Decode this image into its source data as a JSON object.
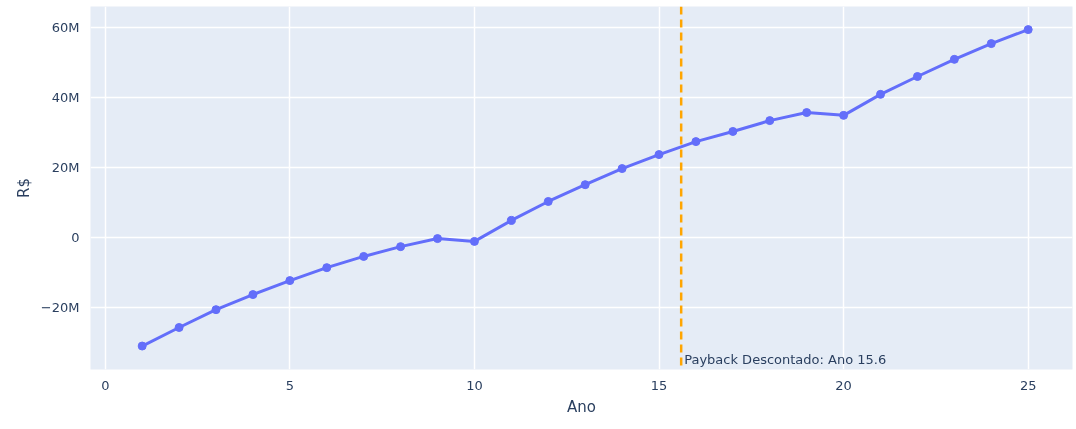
{
  "chart_data": {
    "type": "line",
    "xlabel": "Ano",
    "ylabel": "R$",
    "x": [
      1,
      2,
      3,
      4,
      5,
      6,
      7,
      8,
      9,
      10,
      11,
      12,
      13,
      14,
      15,
      16,
      17,
      18,
      19,
      20,
      21,
      22,
      23,
      24,
      25
    ],
    "series": [
      {
        "color": "#636efa",
        "values": [
          -31000000,
          -25700000,
          -20600000,
          -16300000,
          -12300000,
          -8600000,
          -5400000,
          -2600000,
          -300000,
          -1100000,
          4900000,
          10300000,
          15100000,
          19700000,
          23700000,
          27400000,
          30300000,
          33400000,
          35700000,
          34900000,
          40900000,
          46000000,
          50900000,
          55400000,
          59400000
        ]
      }
    ],
    "xlim": [
      -0.4,
      26.2
    ],
    "ylim": [
      -37700000,
      66000000
    ],
    "xticks": [
      0,
      5,
      10,
      15,
      20,
      25
    ],
    "yticks": [
      {
        "value": -20000000,
        "label": "−20M"
      },
      0,
      {
        "value": 20000000,
        "label": "20M"
      },
      {
        "value": 40000000,
        "label": "40M"
      },
      {
        "value": 60000000,
        "label": "60M"
      }
    ],
    "ref_lines": [
      {
        "axis": "x",
        "value": 15.6,
        "label": "Payback Descontado: Ano 15.6",
        "color": "#ffa500",
        "line_style": "dashed"
      }
    ],
    "grid": true,
    "marker": "circle",
    "line_style": "solid"
  }
}
